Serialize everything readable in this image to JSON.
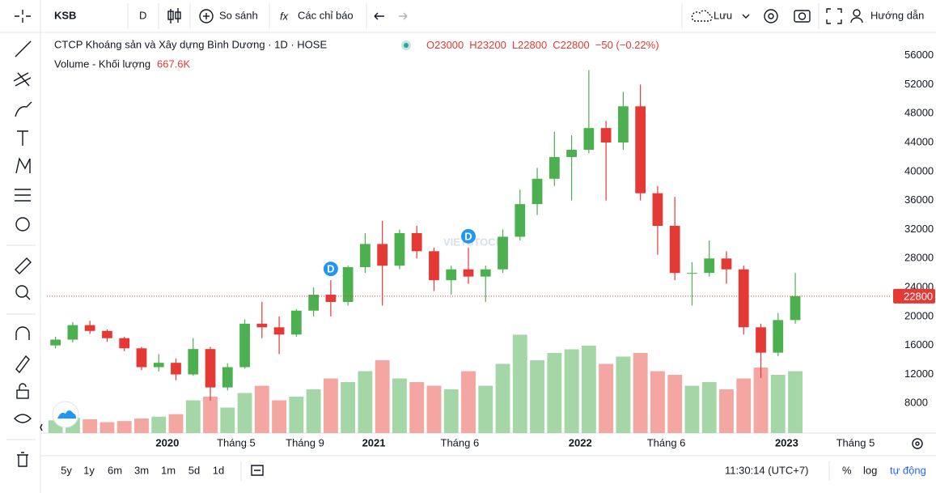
{
  "toolbar": {
    "symbol": "KSB",
    "interval": "D",
    "compare": "So sánh",
    "indicators": "Các chỉ báo",
    "save": "Lưu",
    "help": "Hướng dẫn"
  },
  "chart_data": {
    "type": "candlestick",
    "title": "CTCP Khoáng sản và Xây dựng Bình Dương · 1D · HOSE",
    "ohlc_legend": [
      "O23000",
      "H23200",
      "L22800",
      "C22800",
      "−50 (−0.22%)"
    ],
    "volume_title": "Volume - Khối lượng",
    "volume_last": "667.6K",
    "watermark": "VIETSTOCK",
    "x": [
      "2019-06",
      "2019-07",
      "2019-08",
      "2019-09",
      "2019-10",
      "2019-11",
      "2019-12",
      "2020-01",
      "2020-02",
      "2020-03",
      "2020-04",
      "2020-05",
      "2020-06",
      "2020-07",
      "2020-08",
      "2020-09",
      "2020-10",
      "2020-11",
      "2020-12",
      "2021-01",
      "2021-02",
      "2021-03",
      "2021-04",
      "2021-05",
      "2021-06",
      "2021-07",
      "2021-08",
      "2021-09",
      "2021-10",
      "2021-11",
      "2021-12",
      "2022-01",
      "2022-02",
      "2022-03",
      "2022-04",
      "2022-05",
      "2022-06",
      "2022-07",
      "2022-08",
      "2022-09",
      "2022-10",
      "2022-11",
      "2022-12",
      "2023-01"
    ],
    "open": [
      16000,
      16800,
      18800,
      18000,
      17000,
      15600,
      13000,
      13600,
      12000,
      15500,
      10200,
      13000,
      19000,
      18500,
      17500,
      20800,
      23000,
      22000,
      26800,
      30000,
      27000,
      31500,
      29000,
      25000,
      26500,
      25500,
      26500,
      31000,
      35500,
      39000,
      42000,
      43000,
      46000,
      44000,
      49000,
      37000,
      32500,
      26000,
      26000,
      28000,
      26500,
      18500,
      15000,
      19500
    ],
    "high": [
      17200,
      19200,
      19400,
      18200,
      17200,
      15800,
      14800,
      14200,
      17000,
      15800,
      13500,
      19600,
      22000,
      20000,
      21000,
      24000,
      25000,
      27000,
      31500,
      33200,
      32000,
      32500,
      29500,
      27000,
      29500,
      27000,
      32000,
      37500,
      40500,
      45500,
      45000,
      54000,
      47000,
      51000,
      52000,
      38000,
      36500,
      27500,
      30500,
      29000,
      27000,
      19000,
      20500,
      26000
    ],
    "low": [
      15600,
      16400,
      17600,
      16500,
      15200,
      12600,
      12400,
      11200,
      11800,
      8400,
      9800,
      12800,
      17000,
      14800,
      17200,
      20000,
      20000,
      21500,
      26000,
      21500,
      26500,
      28000,
      23500,
      23000,
      24500,
      22000,
      26000,
      30500,
      34000,
      38000,
      36000,
      42500,
      36000,
      43000,
      36000,
      28500,
      25000,
      21500,
      25500,
      24500,
      17500,
      11500,
      14500,
      19000
    ],
    "close": [
      16800,
      18800,
      18000,
      17000,
      15600,
      13000,
      13600,
      12000,
      15500,
      10200,
      13000,
      19000,
      18500,
      17500,
      20800,
      23000,
      22000,
      26800,
      30000,
      27000,
      31500,
      29000,
      25000,
      26500,
      25500,
      26500,
      31000,
      35500,
      39000,
      42000,
      43000,
      46000,
      44000,
      49000,
      37000,
      32500,
      26000,
      26000,
      28000,
      26500,
      18500,
      15000,
      19500,
      22800
    ],
    "volume": [
      350000,
      420000,
      380000,
      300000,
      330000,
      400000,
      450000,
      520000,
      900000,
      1000000,
      700000,
      1100000,
      1300000,
      900000,
      1000000,
      1200000,
      1500000,
      1400000,
      1700000,
      2000000,
      1500000,
      1400000,
      1300000,
      1200000,
      1700000,
      1300000,
      1900000,
      2700000,
      2000000,
      2200000,
      2300000,
      2400000,
      1900000,
      2100000,
      2200000,
      1700000,
      1600000,
      1300000,
      1400000,
      1200000,
      1500000,
      1800000,
      1600000,
      1700000
    ],
    "up_color": "#4caf50",
    "down_color": "#e53935",
    "volume_up_color": "#a5d6a7",
    "volume_down_color": "#f4a6a3",
    "xlim": [
      "2019-06",
      "2023-07"
    ],
    "xticks": [
      {
        "value": "2020-01",
        "label": "2020"
      },
      {
        "value": "2020-05",
        "label": "Tháng 5"
      },
      {
        "value": "2020-09",
        "label": "Tháng 9"
      },
      {
        "value": "2021-01",
        "label": "2021"
      },
      {
        "value": "2021-06",
        "label": "Tháng 6"
      },
      {
        "value": "2022-01",
        "label": "2022"
      },
      {
        "value": "2022-06",
        "label": "Tháng 6"
      },
      {
        "value": "2023-01",
        "label": "2023"
      },
      {
        "value": "2023-05",
        "label": "Tháng 5"
      }
    ],
    "ylim": [
      3900,
      59200
    ],
    "yticks": [
      8000,
      12000,
      16000,
      20000,
      24000,
      28000,
      32000,
      36000,
      40000,
      44000,
      48000,
      52000,
      56000
    ],
    "volume_lim": [
      0,
      4000000
    ],
    "last_price": 22800,
    "events": [
      {
        "x": "2020-10",
        "label": "D"
      },
      {
        "x": "2021-06",
        "label": "D"
      }
    ]
  },
  "footer": {
    "ranges": [
      "5y",
      "1y",
      "6m",
      "3m",
      "1m",
      "5d",
      "1d"
    ],
    "clock": "11:30:14 (UTC+7)",
    "percent": "%",
    "log": "log",
    "auto": "tự động"
  }
}
